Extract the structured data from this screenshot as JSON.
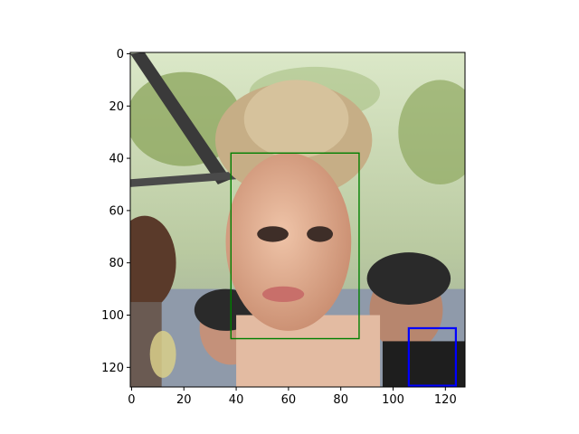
{
  "chart_data": {
    "type": "image",
    "title": "",
    "xlabel": "",
    "ylabel": "",
    "image_size": [
      128,
      128
    ],
    "xlim": [
      -0.5,
      127.5
    ],
    "ylim": [
      127.5,
      -0.5
    ],
    "y_inverted": true,
    "xticks": [
      0,
      20,
      40,
      60,
      80,
      100,
      120
    ],
    "yticks": [
      0,
      20,
      40,
      60,
      80,
      100,
      120
    ],
    "grid": false,
    "boxes": [
      {
        "x0": 38,
        "y0": 38,
        "x1": 87,
        "y1": 109,
        "color": "#008000"
      },
      {
        "x0": 106,
        "y0": 105,
        "x1": 124,
        "y1": 127,
        "color": "#0000ff"
      }
    ],
    "image_content": {
      "colors": {
        "background_sky": "#d8e6c6",
        "foliage": "#8ea860",
        "hair": "#c6ae86",
        "skin": "#dcaa90",
        "dark_hair": "#2a2a2a",
        "dark_clothing": "#1e1e1e",
        "face_box": "#008000",
        "small_box": "#0000ff"
      }
    }
  }
}
